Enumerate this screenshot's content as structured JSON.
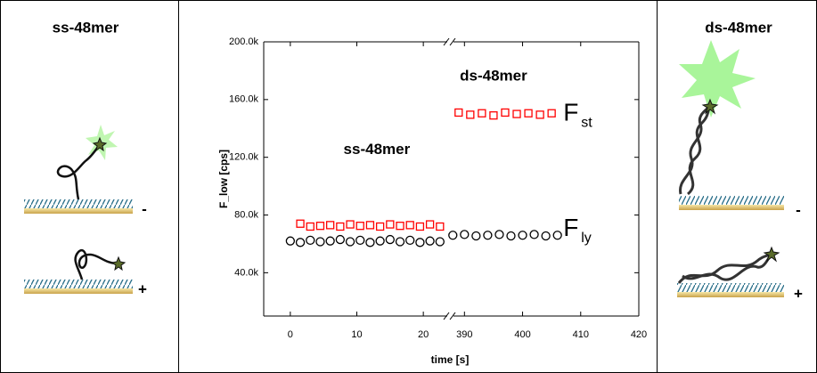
{
  "panels": {
    "left": {
      "title": "ss-48mer",
      "minus": "-",
      "plus": "+"
    },
    "right": {
      "title": "ds-48mer",
      "minus": "-",
      "plus": "+"
    }
  },
  "chart_data": {
    "type": "scatter",
    "xlabel": "time [s]",
    "ylabel": "F_low [cps]",
    "xlim": [
      -4,
      420
    ],
    "xbreak": [
      24,
      387.5
    ],
    "ylim": [
      10000,
      200000
    ],
    "xticks": [
      0,
      10,
      20,
      390,
      400,
      410,
      420
    ],
    "yticks": [
      {
        "value": 40000,
        "label": "40.0k"
      },
      {
        "value": 80000,
        "label": "80.0k"
      },
      {
        "value": 120000,
        "label": "120.0k"
      },
      {
        "value": 160000,
        "label": "160.0k"
      },
      {
        "value": 200000,
        "label": "200.0k"
      }
    ],
    "series": [
      {
        "color": "#ff0000",
        "marker": "square",
        "x": [
          1.5,
          3,
          4.5,
          6,
          7.5,
          9,
          10.5,
          12,
          13.5,
          15,
          16.5,
          18,
          19.5,
          21,
          22.5,
          389,
          391,
          393,
          395,
          397,
          399,
          401,
          403,
          405
        ],
        "values": [
          74000,
          72000,
          72500,
          73000,
          72000,
          73500,
          72500,
          73000,
          72000,
          73500,
          72500,
          73000,
          72000,
          73500,
          72000,
          151000,
          149500,
          150500,
          149000,
          151000,
          150000,
          150500,
          149500,
          150500
        ]
      },
      {
        "color": "#000000",
        "marker": "circle",
        "x": [
          0,
          1.5,
          3,
          4.5,
          6,
          7.5,
          9,
          10.5,
          12,
          13.5,
          15,
          16.5,
          18,
          19.5,
          21,
          22.5,
          388,
          390,
          392,
          394,
          396,
          398,
          400,
          402,
          404,
          406
        ],
        "values": [
          62000,
          61000,
          62500,
          61500,
          62000,
          63000,
          61500,
          62500,
          61000,
          62000,
          63000,
          61500,
          62500,
          61000,
          62000,
          61500,
          66000,
          66500,
          65500,
          66000,
          66500,
          65500,
          66000,
          66500,
          65500,
          66000
        ]
      }
    ],
    "annotations": [
      {
        "text": "ss-48mer",
        "x": 13,
        "y": 125000
      },
      {
        "text": "ds-48mer",
        "x": 395,
        "y": 176000
      },
      {
        "text": "F",
        "sub": "st",
        "x": 407,
        "y": 150000
      },
      {
        "text": "F",
        "sub": "ly",
        "x": 407,
        "y": 70000
      }
    ]
  }
}
